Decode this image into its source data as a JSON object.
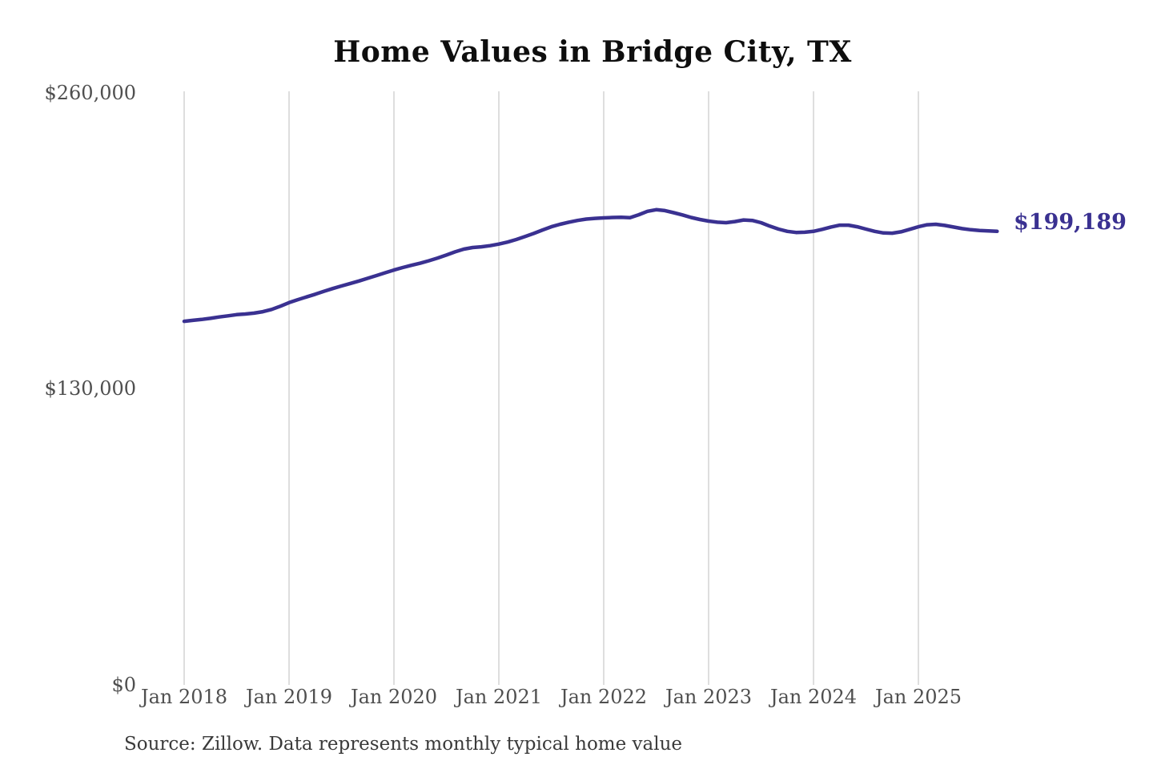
{
  "chart": {
    "title": "Home Values in Bridge City, TX",
    "end_label": "$199,189",
    "source": "Source: Zillow. Data represents monthly typical home value"
  },
  "colors": {
    "line": "#3a3191",
    "gridline": "#cccccc",
    "tick_text": "#4f4f4f",
    "background": "#ffffff"
  },
  "chart_data": {
    "type": "line",
    "title": "Home Values in Bridge City, TX",
    "series_name": "Monthly typical home value (ZHVI)",
    "xlabel": "",
    "ylabel": "",
    "ylim": [
      0,
      260000
    ],
    "grid": "vertical-only",
    "legend_position": "none",
    "y_tick_values": [
      260000,
      130000,
      0
    ],
    "y_tick_labels": [
      "$260,000",
      "$130,000",
      "$0"
    ],
    "x_tick_labels": [
      "Jan 2018",
      "Jan 2019",
      "Jan 2020",
      "Jan 2021",
      "Jan 2022",
      "Jan 2023",
      "Jan 2024",
      "Jan 2025"
    ],
    "x": [
      "2018-01",
      "2018-02",
      "2018-03",
      "2018-04",
      "2018-05",
      "2018-06",
      "2018-07",
      "2018-08",
      "2018-09",
      "2018-10",
      "2018-11",
      "2018-12",
      "2019-01",
      "2019-02",
      "2019-03",
      "2019-04",
      "2019-05",
      "2019-06",
      "2019-07",
      "2019-08",
      "2019-09",
      "2019-10",
      "2019-11",
      "2019-12",
      "2020-01",
      "2020-02",
      "2020-03",
      "2020-04",
      "2020-05",
      "2020-06",
      "2020-07",
      "2020-08",
      "2020-09",
      "2020-10",
      "2020-11",
      "2020-12",
      "2021-01",
      "2021-02",
      "2021-03",
      "2021-04",
      "2021-05",
      "2021-06",
      "2021-07",
      "2021-08",
      "2021-09",
      "2021-10",
      "2021-11",
      "2021-12",
      "2022-01",
      "2022-02",
      "2022-03",
      "2022-04",
      "2022-05",
      "2022-06",
      "2022-07",
      "2022-08",
      "2022-09",
      "2022-10",
      "2022-11",
      "2022-12",
      "2023-01",
      "2023-02",
      "2023-03",
      "2023-04",
      "2023-05",
      "2023-06",
      "2023-07",
      "2023-08",
      "2023-09",
      "2023-10",
      "2023-11",
      "2023-12",
      "2024-01",
      "2024-02",
      "2024-03",
      "2024-04",
      "2024-05",
      "2024-06",
      "2024-07",
      "2024-08",
      "2024-09",
      "2024-10",
      "2024-11",
      "2024-12",
      "2025-01",
      "2025-02",
      "2025-03",
      "2025-04",
      "2025-05",
      "2025-06",
      "2025-07",
      "2025-08",
      "2025-09",
      "2025-10"
    ],
    "values": [
      159700,
      160100,
      160500,
      161000,
      161600,
      162100,
      162600,
      162900,
      163300,
      163900,
      164900,
      166300,
      167900,
      169200,
      170400,
      171600,
      172900,
      174100,
      175200,
      176300,
      177400,
      178600,
      179800,
      181000,
      182200,
      183300,
      184300,
      185200,
      186300,
      187500,
      188800,
      190200,
      191400,
      192100,
      192400,
      192900,
      193600,
      194500,
      195600,
      196900,
      198300,
      199800,
      201200,
      202300,
      203200,
      204000,
      204600,
      204900,
      205100,
      205300,
      205400,
      205200,
      206500,
      208000,
      208700,
      208300,
      207400,
      206400,
      205300,
      204400,
      203700,
      203200,
      203000,
      203500,
      204200,
      204000,
      203000,
      201500,
      200200,
      199200,
      198700,
      198800,
      199200,
      200100,
      201100,
      201900,
      201900,
      201200,
      200200,
      199200,
      198500,
      198400,
      199000,
      200100,
      201200,
      202100,
      202300,
      201800,
      201100,
      200400,
      199900,
      199600,
      199400,
      199189
    ],
    "last_value": 199189,
    "end_label": "$199,189"
  }
}
